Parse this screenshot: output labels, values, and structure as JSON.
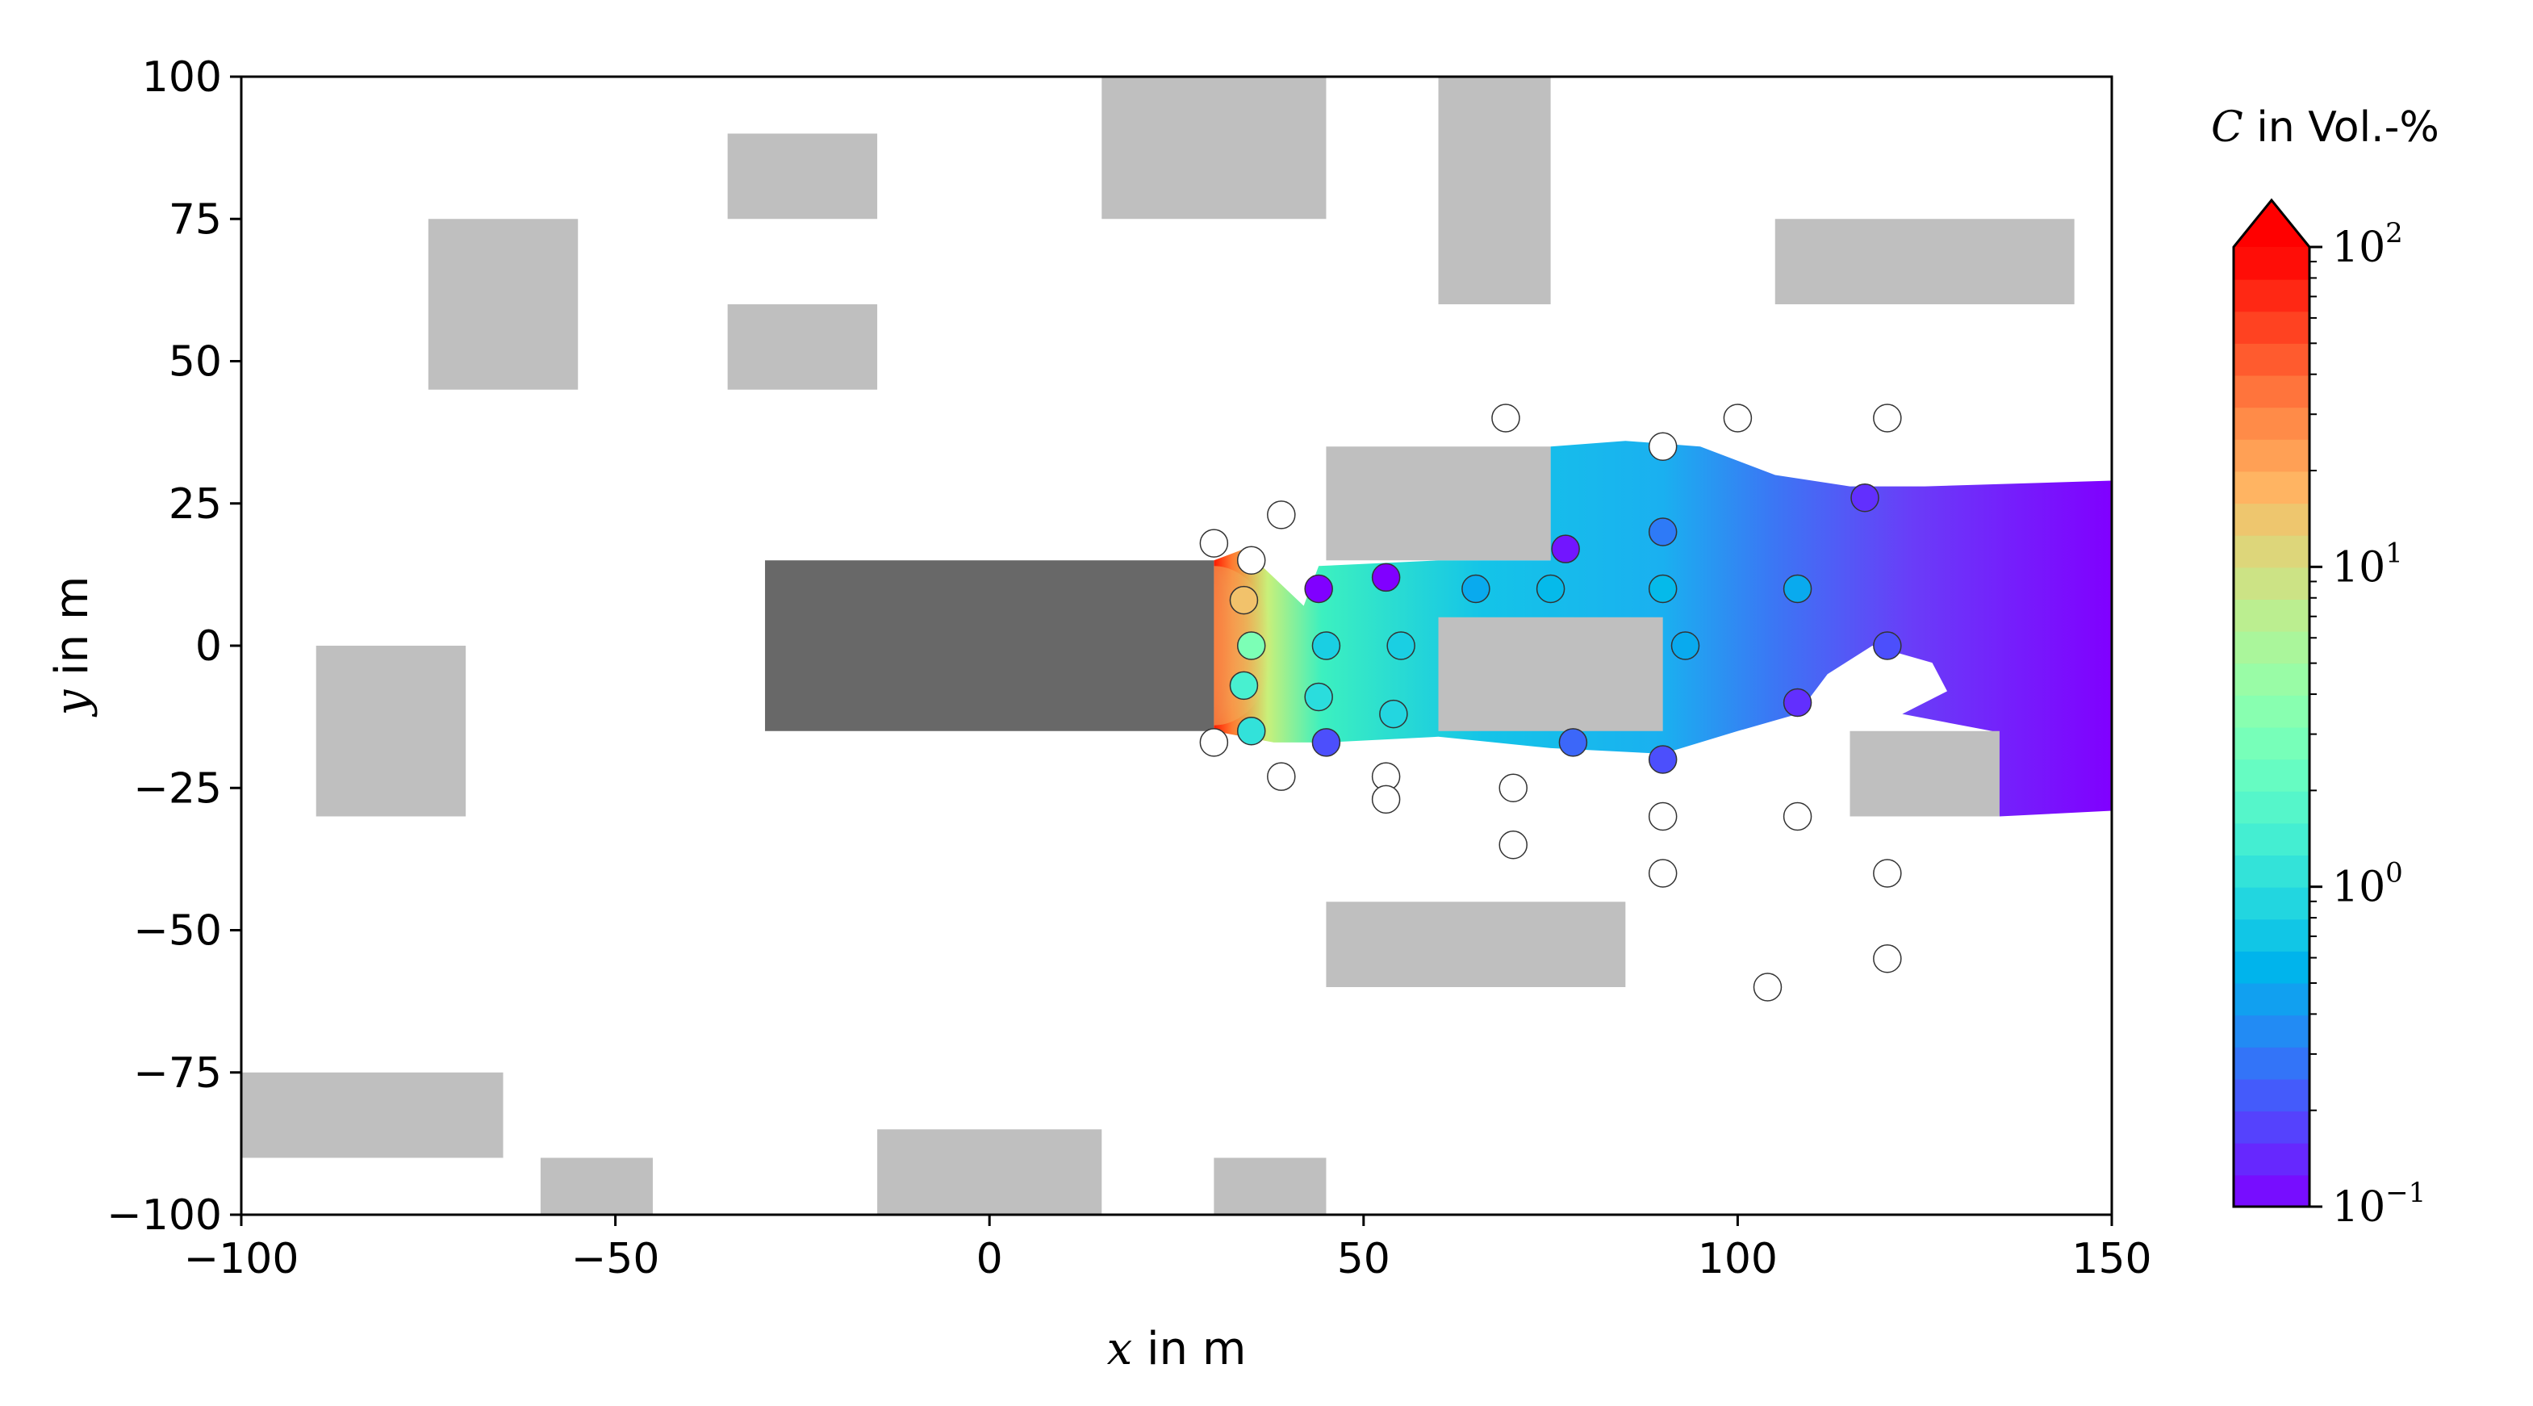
{
  "chart_data": {
    "type": "heatmap",
    "title": "",
    "xlabel_var": "x",
    "xlabel_text": " in m",
    "ylabel_var": "y",
    "ylabel_text": " in m",
    "xlim": [
      -100,
      150
    ],
    "ylim": [
      -100,
      100
    ],
    "xticks": [
      -100,
      -50,
      0,
      50,
      100,
      150
    ],
    "yticks": [
      -100,
      -75,
      -50,
      -25,
      0,
      25,
      50,
      75,
      100
    ],
    "xtick_labels": [
      "−100",
      "−50",
      "0",
      "50",
      "100",
      "150"
    ],
    "ytick_labels": [
      "−100",
      "−75",
      "−50",
      "−25",
      "0",
      "25",
      "50",
      "75",
      "100"
    ],
    "colorbar": {
      "var": "C",
      "label_text": " in Vol.-%",
      "scale": "log",
      "range": [
        0.1,
        100
      ],
      "ticks": [
        {
          "base": "10",
          "exp": "−1",
          "value": 0.1
        },
        {
          "base": "10",
          "exp": "0",
          "value": 1
        },
        {
          "base": "10",
          "exp": "1",
          "value": 10
        },
        {
          "base": "10",
          "exp": "2",
          "value": 100
        }
      ],
      "extend": "max",
      "colormap": "rainbow"
    },
    "source_building": {
      "x0": -30,
      "x1": 30,
      "y0": -15,
      "y1": 15,
      "color": "#686868"
    },
    "buildings": [
      {
        "x0": -75,
        "x1": -55,
        "y0": 45,
        "y1": 75
      },
      {
        "x0": -35,
        "x1": -15,
        "y0": 75,
        "y1": 90
      },
      {
        "x0": -35,
        "x1": -15,
        "y0": 45,
        "y1": 60
      },
      {
        "x0": 15,
        "x1": 45,
        "y0": 75,
        "y1": 100
      },
      {
        "x0": 60,
        "x1": 75,
        "y0": 60,
        "y1": 100
      },
      {
        "x0": 105,
        "x1": 145,
        "y0": 60,
        "y1": 75
      },
      {
        "x0": -90,
        "x1": -70,
        "y0": -30,
        "y1": 0
      },
      {
        "x0": 45,
        "x1": 75,
        "y0": 15,
        "y1": 35
      },
      {
        "x0": 60,
        "x1": 90,
        "y0": -15,
        "y1": 5
      },
      {
        "x0": 115,
        "x1": 135,
        "y0": -30,
        "y1": -15
      },
      {
        "x0": 45,
        "x1": 85,
        "y0": -60,
        "y1": -45
      },
      {
        "x0": -100,
        "x1": -65,
        "y0": -90,
        "y1": -75
      },
      {
        "x0": -60,
        "x1": -45,
        "y0": -100,
        "y1": -90
      },
      {
        "x0": -15,
        "x1": 15,
        "y0": -100,
        "y1": -85
      },
      {
        "x0": 30,
        "x1": 45,
        "y0": -100,
        "y1": -90
      }
    ],
    "sensors": [
      {
        "x": 69,
        "y": 40,
        "c": null
      },
      {
        "x": 90,
        "y": 35,
        "c": null
      },
      {
        "x": 100,
        "y": 40,
        "c": null
      },
      {
        "x": 120,
        "y": 40,
        "c": null
      },
      {
        "x": 117,
        "y": 26,
        "c": 0.15
      },
      {
        "x": 39,
        "y": 23,
        "c": null
      },
      {
        "x": 30,
        "y": 18,
        "c": null
      },
      {
        "x": 35,
        "y": 15,
        "c": null
      },
      {
        "x": 77,
        "y": 17,
        "c": 0.12
      },
      {
        "x": 90,
        "y": 20,
        "c": 0.3
      },
      {
        "x": 44,
        "y": 10,
        "c": 0.1
      },
      {
        "x": 53,
        "y": 12,
        "c": 0.1
      },
      {
        "x": 65,
        "y": 10,
        "c": 0.5
      },
      {
        "x": 75,
        "y": 10,
        "c": 0.6
      },
      {
        "x": 90,
        "y": 10,
        "c": 0.6
      },
      {
        "x": 108,
        "y": 10,
        "c": 0.5
      },
      {
        "x": 34,
        "y": 8,
        "c": 15
      },
      {
        "x": 35,
        "y": 0,
        "c": 3
      },
      {
        "x": 45,
        "y": 0,
        "c": 0.8
      },
      {
        "x": 55,
        "y": 0,
        "c": 0.8
      },
      {
        "x": 93,
        "y": 0,
        "c": 0.5
      },
      {
        "x": 120,
        "y": 0,
        "c": 0.2
      },
      {
        "x": 34,
        "y": -7,
        "c": 1.5
      },
      {
        "x": 44,
        "y": -9,
        "c": 1.0
      },
      {
        "x": 54,
        "y": -12,
        "c": 0.9
      },
      {
        "x": 108,
        "y": -10,
        "c": 0.15
      },
      {
        "x": 35,
        "y": -15,
        "c": 1.1
      },
      {
        "x": 30,
        "y": -17,
        "c": null
      },
      {
        "x": 45,
        "y": -17,
        "c": 0.2
      },
      {
        "x": 78,
        "y": -17,
        "c": 0.25
      },
      {
        "x": 90,
        "y": -20,
        "c": 0.2
      },
      {
        "x": 39,
        "y": -23,
        "c": null
      },
      {
        "x": 53,
        "y": -23,
        "c": null
      },
      {
        "x": 53,
        "y": -27,
        "c": null
      },
      {
        "x": 70,
        "y": -25,
        "c": null
      },
      {
        "x": 70,
        "y": -35,
        "c": null
      },
      {
        "x": 90,
        "y": -30,
        "c": null
      },
      {
        "x": 90,
        "y": -40,
        "c": null
      },
      {
        "x": 108,
        "y": -30,
        "c": null
      },
      {
        "x": 120,
        "y": -40,
        "c": null
      },
      {
        "x": 120,
        "y": -55,
        "c": null
      },
      {
        "x": 104,
        "y": -60,
        "c": null
      }
    ]
  }
}
